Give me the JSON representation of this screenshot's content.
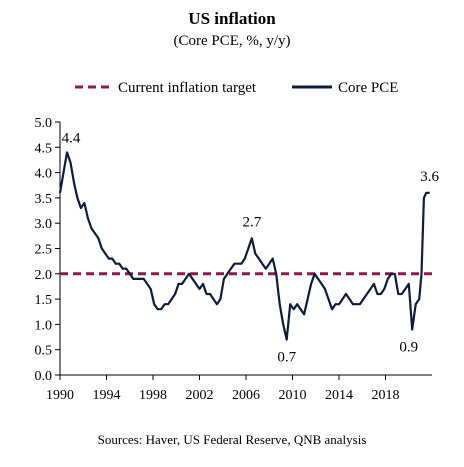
{
  "chart_data": {
    "type": "line",
    "title": "US inflation",
    "subtitle": "(Core PCE, %, y/y)",
    "source": "Sources: Haver, US Federal Reserve, QNB analysis",
    "xlabel": "",
    "ylabel": "",
    "xlim": [
      1990,
      2022
    ],
    "ylim": [
      0.0,
      5.0
    ],
    "x_ticks": [
      "1990",
      "1994",
      "1998",
      "2002",
      "2006",
      "2010",
      "2014",
      "2018"
    ],
    "y_ticks": [
      "0.0",
      "0.5",
      "1.0",
      "1.5",
      "2.0",
      "2.5",
      "3.0",
      "3.5",
      "4.0",
      "4.5",
      "5.0"
    ],
    "grid": false,
    "legend_position": "top",
    "colors": {
      "target": "#8b1a4a",
      "core_pce": "#0d1b3e"
    },
    "series": [
      {
        "name": "Current inflation target",
        "style": "dashed",
        "x": [
          1990,
          2022
        ],
        "y": [
          2.0,
          2.0
        ]
      },
      {
        "name": "Core PCE",
        "style": "solid",
        "x": [
          1990.0,
          1990.3,
          1990.6,
          1990.9,
          1991.2,
          1991.5,
          1991.8,
          1992.1,
          1992.4,
          1992.7,
          1993.0,
          1993.3,
          1993.6,
          1993.9,
          1994.2,
          1994.5,
          1994.8,
          1995.1,
          1995.4,
          1995.7,
          1996.0,
          1996.3,
          1996.6,
          1996.9,
          1997.2,
          1997.5,
          1997.8,
          1998.1,
          1998.4,
          1998.7,
          1999.0,
          1999.3,
          1999.6,
          1999.9,
          2000.2,
          2000.5,
          2000.8,
          2001.1,
          2001.4,
          2001.7,
          2002.0,
          2002.3,
          2002.6,
          2002.9,
          2003.2,
          2003.5,
          2003.8,
          2004.1,
          2004.4,
          2004.7,
          2005.0,
          2005.3,
          2005.6,
          2005.9,
          2006.2,
          2006.5,
          2006.8,
          2007.1,
          2007.4,
          2007.7,
          2008.0,
          2008.3,
          2008.6,
          2008.9,
          2009.2,
          2009.5,
          2009.8,
          2010.1,
          2010.4,
          2010.7,
          2011.0,
          2011.3,
          2011.6,
          2011.9,
          2012.2,
          2012.5,
          2012.8,
          2013.1,
          2013.4,
          2013.7,
          2014.0,
          2014.3,
          2014.6,
          2014.9,
          2015.2,
          2015.5,
          2015.8,
          2016.1,
          2016.4,
          2016.7,
          2017.0,
          2017.3,
          2017.6,
          2017.9,
          2018.2,
          2018.5,
          2018.8,
          2019.1,
          2019.4,
          2019.7,
          2020.0,
          2020.3,
          2020.6,
          2020.9,
          2021.1,
          2021.3,
          2021.5,
          2021.8
        ],
        "y": [
          3.6,
          4.0,
          4.4,
          4.2,
          3.8,
          3.5,
          3.3,
          3.4,
          3.1,
          2.9,
          2.8,
          2.7,
          2.5,
          2.4,
          2.3,
          2.3,
          2.2,
          2.2,
          2.1,
          2.1,
          2.0,
          1.9,
          1.9,
          1.9,
          1.9,
          1.8,
          1.7,
          1.4,
          1.3,
          1.3,
          1.4,
          1.4,
          1.5,
          1.6,
          1.8,
          1.8,
          1.9,
          2.0,
          1.9,
          1.8,
          1.7,
          1.8,
          1.6,
          1.6,
          1.5,
          1.4,
          1.5,
          1.9,
          2.0,
          2.1,
          2.2,
          2.2,
          2.2,
          2.3,
          2.5,
          2.7,
          2.4,
          2.3,
          2.2,
          2.1,
          2.2,
          2.3,
          2.0,
          1.4,
          1.0,
          0.7,
          1.4,
          1.3,
          1.4,
          1.3,
          1.2,
          1.5,
          1.8,
          2.0,
          1.9,
          1.8,
          1.7,
          1.5,
          1.3,
          1.4,
          1.4,
          1.5,
          1.6,
          1.5,
          1.4,
          1.4,
          1.4,
          1.5,
          1.6,
          1.7,
          1.8,
          1.6,
          1.6,
          1.7,
          1.9,
          2.0,
          2.0,
          1.6,
          1.6,
          1.7,
          1.8,
          0.9,
          1.4,
          1.5,
          2.0,
          3.5,
          3.6,
          3.6
        ]
      }
    ],
    "annotations": [
      {
        "text": "4.4",
        "x": 1990.6,
        "y": 4.4
      },
      {
        "text": "2.7",
        "x": 2006.5,
        "y": 2.7
      },
      {
        "text": "0.7",
        "x": 2009.5,
        "y": 0.7
      },
      {
        "text": "0.9",
        "x": 2020.0,
        "y": 0.9
      },
      {
        "text": "3.6",
        "x": 2021.8,
        "y": 3.6
      }
    ]
  }
}
